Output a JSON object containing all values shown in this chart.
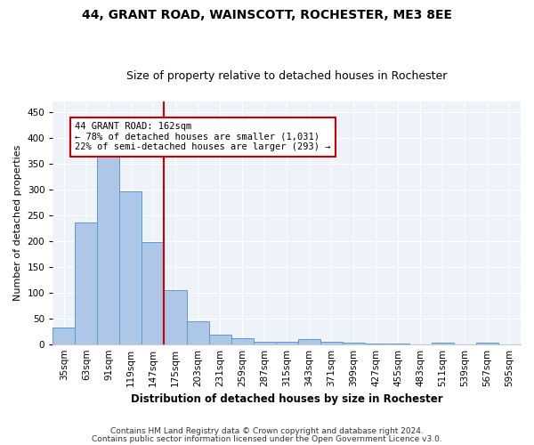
{
  "title1": "44, GRANT ROAD, WAINSCOTT, ROCHESTER, ME3 8EE",
  "title2": "Size of property relative to detached houses in Rochester",
  "xlabel": "Distribution of detached houses by size in Rochester",
  "ylabel": "Number of detached properties",
  "categories": [
    "35sqm",
    "63sqm",
    "91sqm",
    "119sqm",
    "147sqm",
    "175sqm",
    "203sqm",
    "231sqm",
    "259sqm",
    "287sqm",
    "315sqm",
    "343sqm",
    "371sqm",
    "399sqm",
    "427sqm",
    "455sqm",
    "483sqm",
    "511sqm",
    "539sqm",
    "567sqm",
    "595sqm"
  ],
  "values": [
    33,
    236,
    368,
    296,
    198,
    104,
    45,
    19,
    11,
    4,
    4,
    10,
    5,
    3,
    2,
    2,
    0,
    3,
    0,
    3,
    0
  ],
  "bar_color": "#aec6e8",
  "bar_edge_color": "#5b9bd5",
  "vline_x": 4.5,
  "vline_color": "#cc0000",
  "annotation_text": "44 GRANT ROAD: 162sqm\n← 78% of detached houses are smaller (1,031)\n22% of semi-detached houses are larger (293) →",
  "annotation_box_color": "#ffffff",
  "annotation_box_edge_color": "#cc0000",
  "ylim": [
    0,
    470
  ],
  "yticks": [
    0,
    50,
    100,
    150,
    200,
    250,
    300,
    350,
    400,
    450
  ],
  "footnote1": "Contains HM Land Registry data © Crown copyright and database right 2024.",
  "footnote2": "Contains public sector information licensed under the Open Government Licence v3.0.",
  "background_color": "#eef2f9",
  "title1_fontsize": 10,
  "title2_fontsize": 9,
  "xlabel_fontsize": 8.5,
  "ylabel_fontsize": 8,
  "footnote_fontsize": 6.5,
  "tick_fontsize": 7.5,
  "annot_fontsize": 7.5
}
